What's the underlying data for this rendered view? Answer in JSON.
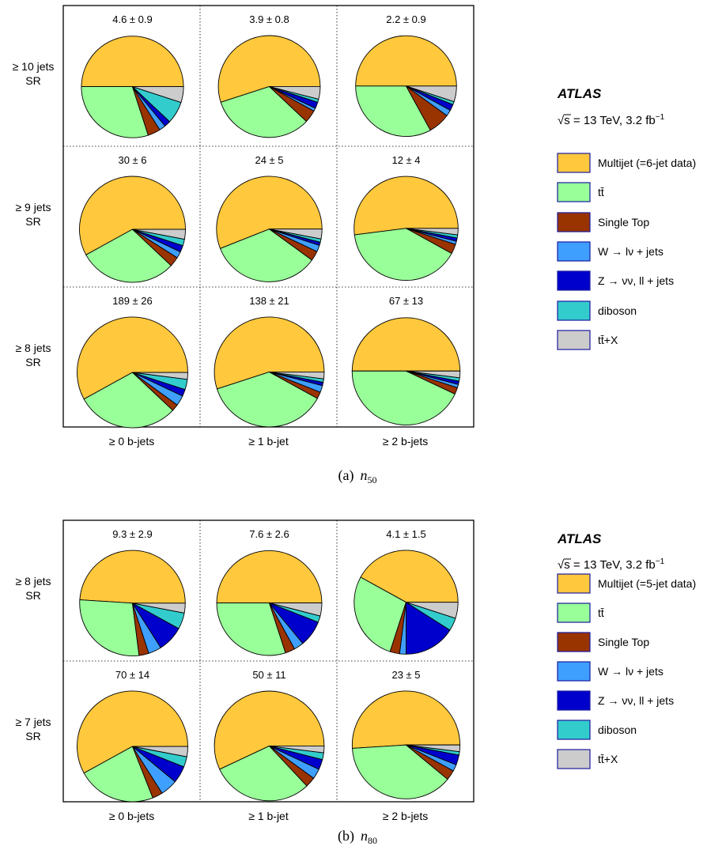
{
  "colors": {
    "Multijet": "#FFC83D",
    "ttbar": "#99FF99",
    "SingleTop": "#993300",
    "Wjets": "#3F9FFF",
    "Zjets": "#0000CC",
    "diboson": "#33CCCC",
    "ttX": "#CCCCCC"
  },
  "chart_data": [
    {
      "id": "a",
      "type": "pie",
      "caption": "(a)",
      "caption_var": "n",
      "caption_sub": "50",
      "experiment": "ATLAS",
      "energy_label": "√s = 13 TeV, 3.2 fb",
      "energy_sup": "−1",
      "legend": [
        "Multijet (=6-jet data)",
        "tt̄",
        "Single Top",
        "W → lν + jets",
        "Z → νν, ll + jets",
        "diboson",
        "tt̄+X"
      ],
      "series_keys": [
        "Multijet",
        "ttbar",
        "SingleTop",
        "Wjets",
        "Zjets",
        "diboson",
        "ttX"
      ],
      "row_labels": [
        [
          "≥ 10 jets",
          "SR"
        ],
        [
          "≥ 9 jets",
          "SR"
        ],
        [
          "≥ 8 jets",
          "SR"
        ]
      ],
      "col_labels": [
        "≥ 0 b-jets",
        "≥ 1 b-jet",
        "≥ 2 b-jets"
      ],
      "cells": [
        [
          {
            "label": "4.6 ± 0.9",
            "total": 4.6,
            "fractions": [
              0.5,
              0.3,
              0.04,
              0.02,
              0.02,
              0.07,
              0.05
            ]
          },
          {
            "label": "3.9 ± 0.8",
            "total": 3.9,
            "fractions": [
              0.55,
              0.33,
              0.04,
              0.01,
              0.02,
              0.01,
              0.04
            ]
          },
          {
            "label": "2.2 ± 0.9",
            "total": 2.2,
            "fractions": [
              0.5,
              0.33,
              0.07,
              0.02,
              0.02,
              0.01,
              0.05
            ]
          }
        ],
        [
          {
            "label": "30 ± 6",
            "total": 30,
            "fractions": [
              0.58,
              0.3,
              0.03,
              0.02,
              0.02,
              0.02,
              0.03
            ]
          },
          {
            "label": "24 ± 5",
            "total": 24,
            "fractions": [
              0.56,
              0.34,
              0.03,
              0.02,
              0.01,
              0.01,
              0.03
            ]
          },
          {
            "label": "12 ± 4",
            "total": 12,
            "fractions": [
              0.52,
              0.4,
              0.03,
              0.01,
              0.01,
              0.01,
              0.02
            ]
          }
        ],
        [
          {
            "label": "189 ± 26",
            "total": 189,
            "fractions": [
              0.58,
              0.3,
              0.02,
              0.03,
              0.02,
              0.03,
              0.02
            ]
          },
          {
            "label": "138 ± 21",
            "total": 138,
            "fractions": [
              0.55,
              0.37,
              0.02,
              0.02,
              0.01,
              0.01,
              0.02
            ]
          },
          {
            "label": "67 ± 13",
            "total": 67,
            "fractions": [
              0.5,
              0.43,
              0.02,
              0.01,
              0.01,
              0.01,
              0.02
            ]
          }
        ]
      ]
    },
    {
      "id": "b",
      "type": "pie",
      "caption": "(b)",
      "caption_var": "n",
      "caption_sub": "80",
      "experiment": "ATLAS",
      "energy_label": "√s = 13 TeV, 3.2 fb",
      "energy_sup": "−1",
      "legend": [
        "Multijet (=5-jet data)",
        "tt̄",
        "Single Top",
        "W → lν + jets",
        "Z → νν, ll + jets",
        "diboson",
        "tt̄+X"
      ],
      "series_keys": [
        "Multijet",
        "ttbar",
        "SingleTop",
        "Wjets",
        "Zjets",
        "diboson",
        "ttX"
      ],
      "row_labels": [
        [
          "≥ 8 jets",
          "SR"
        ],
        [
          "≥ 7 jets",
          "SR"
        ]
      ],
      "col_labels": [
        "≥ 0 b-jets",
        "≥ 1 b-jet",
        "≥ 2 b-jets"
      ],
      "cells": [
        [
          {
            "label": "9.3 ± 2.9",
            "total": 9.3,
            "fractions": [
              0.49,
              0.28,
              0.03,
              0.04,
              0.08,
              0.05,
              0.03
            ]
          },
          {
            "label": "7.6 ± 2.6",
            "total": 7.6,
            "fractions": [
              0.5,
              0.3,
              0.03,
              0.03,
              0.08,
              0.02,
              0.04
            ]
          },
          {
            "label": "4.1 ± 1.5",
            "total": 4.1,
            "fractions": [
              0.42,
              0.28,
              0.03,
              0.02,
              0.16,
              0.04,
              0.05
            ]
          }
        ],
        [
          {
            "label": "70 ± 14",
            "total": 70,
            "fractions": [
              0.58,
              0.23,
              0.03,
              0.05,
              0.05,
              0.03,
              0.03
            ]
          },
          {
            "label": "50 ± 11",
            "total": 50,
            "fractions": [
              0.57,
              0.3,
              0.03,
              0.03,
              0.03,
              0.02,
              0.02
            ]
          },
          {
            "label": "23 ± 5",
            "total": 23,
            "fractions": [
              0.51,
              0.38,
              0.03,
              0.02,
              0.03,
              0.01,
              0.02
            ]
          }
        ]
      ]
    }
  ]
}
